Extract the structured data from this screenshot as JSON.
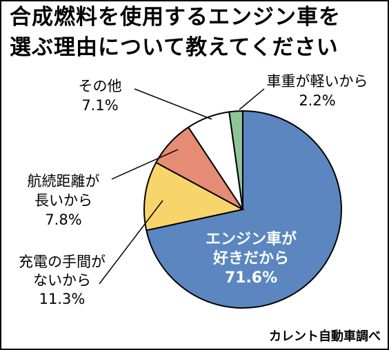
{
  "title_lines": [
    "合成燃料を使用するエンジン車を",
    "選ぶ理由について教えてください"
  ],
  "source": "カレント自動車調べ",
  "chart_data": {
    "type": "pie",
    "title": "合成燃料を使用するエンジン車を選ぶ理由について教えてください",
    "unit": "%",
    "slices": [
      {
        "key": "engine",
        "label_lines": [
          "エンジン車が",
          "好きだから",
          "71.6%"
        ],
        "value": 71.6,
        "color": "#5b86bf"
      },
      {
        "key": "refuel",
        "label_lines": [
          "充電の手間が",
          "ないから",
          "11.3%"
        ],
        "value": 11.3,
        "color": "#f7d56a"
      },
      {
        "key": "range",
        "label_lines": [
          "航続距離が",
          "長いから",
          "7.8%"
        ],
        "value": 7.8,
        "color": "#e68b74"
      },
      {
        "key": "other",
        "label_lines": [
          "その他",
          "7.1%"
        ],
        "value": 7.1,
        "color": "#ffffff"
      },
      {
        "key": "light",
        "label_lines": [
          "車重が軽いから",
          "2.2%"
        ],
        "value": 2.2,
        "color": "#8fc49a"
      }
    ]
  }
}
